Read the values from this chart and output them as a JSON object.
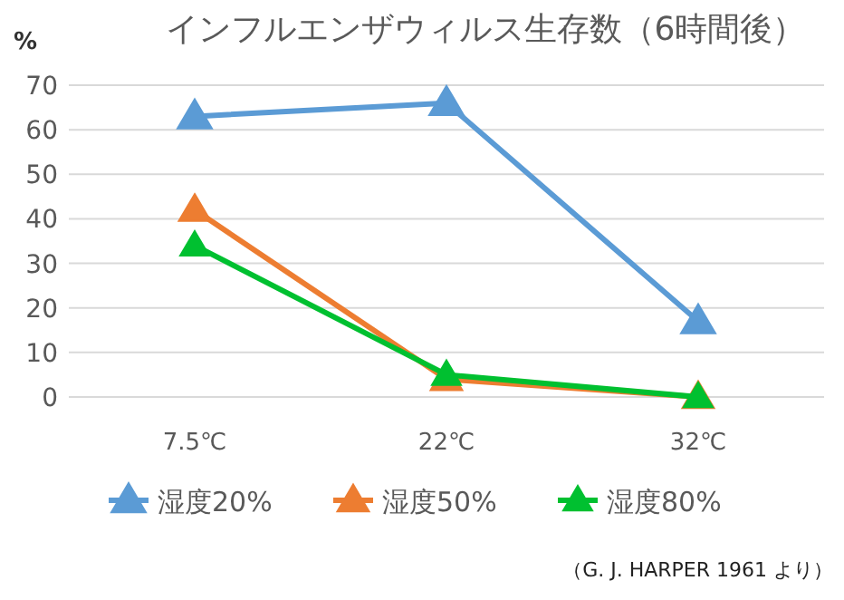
{
  "chart_data": {
    "type": "line",
    "title": "インフルエンザウィルス生存数（6時間後）",
    "ylabel": "%",
    "categories": [
      "7.5℃",
      "22℃",
      "32℃"
    ],
    "series": [
      {
        "name": "湿度20%",
        "color": "#5b9bd5",
        "values": [
          63,
          66,
          17
        ]
      },
      {
        "name": "湿度50%",
        "color": "#ed7d31",
        "values": [
          42,
          4,
          0
        ]
      },
      {
        "name": "湿度80%",
        "color": "#00c030",
        "values": [
          34,
          5,
          0
        ]
      }
    ],
    "ylim": [
      0,
      70
    ],
    "yticks": [
      0,
      10,
      20,
      30,
      40,
      50,
      60,
      70
    ],
    "grid": "y",
    "legend": "bottom",
    "marker": "triangle",
    "line_style": "solid",
    "annotations": [
      "（G. J. HARPER  1961  より）"
    ]
  }
}
